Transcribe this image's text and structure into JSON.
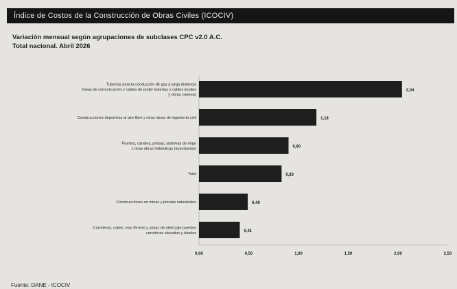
{
  "header": {
    "title": "Índice de Costos de la Construcción de Obras Civiles (ICOCIV)"
  },
  "subtitle": {
    "line1": "Variación mensual según agrupaciones de subclases CPC v2.0 A.C.",
    "line2": "Total nacional. Abril 2026"
  },
  "footer": {
    "source": "Fuente: DANE - ICOCIV"
  },
  "colors": {
    "bar": "#1e1e1e",
    "background": "#e6e4e0",
    "title_bar": "#151515"
  },
  "chart_data": {
    "type": "bar",
    "orientation": "horizontal",
    "categories": [
      [
        "Tuberías para la conducción de gas a larga distancia",
        "líneas de comunicación y cables de poder tuberías y cables locales",
        "y obras conexas"
      ],
      [
        "Construcciones deportivas al aire libre y otras obras de ingeniería civil"
      ],
      [
        "Puertos, canales, presas, sistemas de riego",
        "y otras obras hidráulicas (acueductos)"
      ],
      [
        "Total"
      ],
      [
        "Construcciones en minas y plantas industriales"
      ],
      [
        "Carreteras, calles, vías férreas y pistas de aterrizaje puentes",
        "carreteras elevados y túneles"
      ]
    ],
    "values": [
      2.04,
      1.18,
      0.9,
      0.83,
      0.49,
      0.41
    ],
    "value_labels": [
      "2,04",
      "1,18",
      "0,90",
      "0,83",
      "0,49",
      "0,41"
    ],
    "x_ticks": [
      0,
      0.5,
      1,
      1.5,
      2,
      2.5
    ],
    "x_tick_labels": [
      "0,00",
      "0,50",
      "1,00",
      "1,50",
      "2,00",
      "2,50"
    ],
    "xlim": [
      0,
      2.5
    ],
    "grid": false,
    "legend": "none"
  }
}
